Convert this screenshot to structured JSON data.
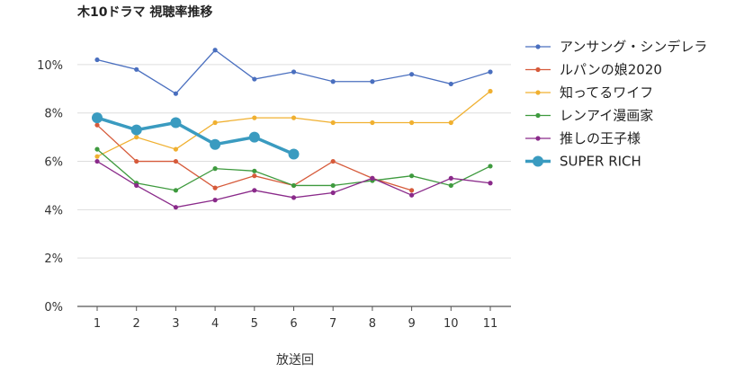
{
  "chart_data": {
    "type": "line",
    "title": "木10ドラマ 視聴率推移",
    "xlabel": "放送回",
    "ylabel": "",
    "categories": [
      "1",
      "2",
      "3",
      "4",
      "5",
      "6",
      "7",
      "8",
      "9",
      "10",
      "11"
    ],
    "ylim": [
      0,
      10
    ],
    "yticks": [
      0,
      2,
      4,
      6,
      8,
      10
    ],
    "y_unit": "%",
    "grid": true,
    "legend_position": "right",
    "series": [
      {
        "name": "アンサング・シンデレラ",
        "color": "#4a6fbf",
        "emphasis": false,
        "values": [
          10.2,
          9.8,
          8.8,
          10.6,
          9.4,
          9.7,
          9.3,
          9.3,
          9.6,
          9.2,
          9.7
        ]
      },
      {
        "name": "ルパンの娘2020",
        "color": "#d65a3a",
        "emphasis": false,
        "values": [
          7.5,
          6.0,
          6.0,
          4.9,
          5.4,
          5.0,
          6.0,
          5.3,
          4.8,
          null,
          null
        ]
      },
      {
        "name": "知ってるワイフ",
        "color": "#f0b030",
        "emphasis": false,
        "values": [
          6.2,
          7.0,
          6.5,
          7.6,
          7.8,
          7.8,
          7.6,
          7.6,
          7.6,
          7.6,
          8.9
        ]
      },
      {
        "name": "レンアイ漫画家",
        "color": "#3e9a3e",
        "emphasis": false,
        "values": [
          6.5,
          5.1,
          4.8,
          5.7,
          5.6,
          5.0,
          5.0,
          5.2,
          5.4,
          5.0,
          5.8
        ]
      },
      {
        "name": "推しの王子様",
        "color": "#8a2a8a",
        "emphasis": false,
        "values": [
          6.0,
          5.0,
          4.1,
          4.4,
          4.8,
          4.5,
          4.7,
          5.3,
          4.6,
          5.3,
          5.1
        ]
      },
      {
        "name": "SUPER RICH",
        "color": "#3a9bc0",
        "emphasis": true,
        "values": [
          7.8,
          7.3,
          7.6,
          6.7,
          7.0,
          6.3,
          null,
          null,
          null,
          null,
          null
        ]
      }
    ]
  }
}
